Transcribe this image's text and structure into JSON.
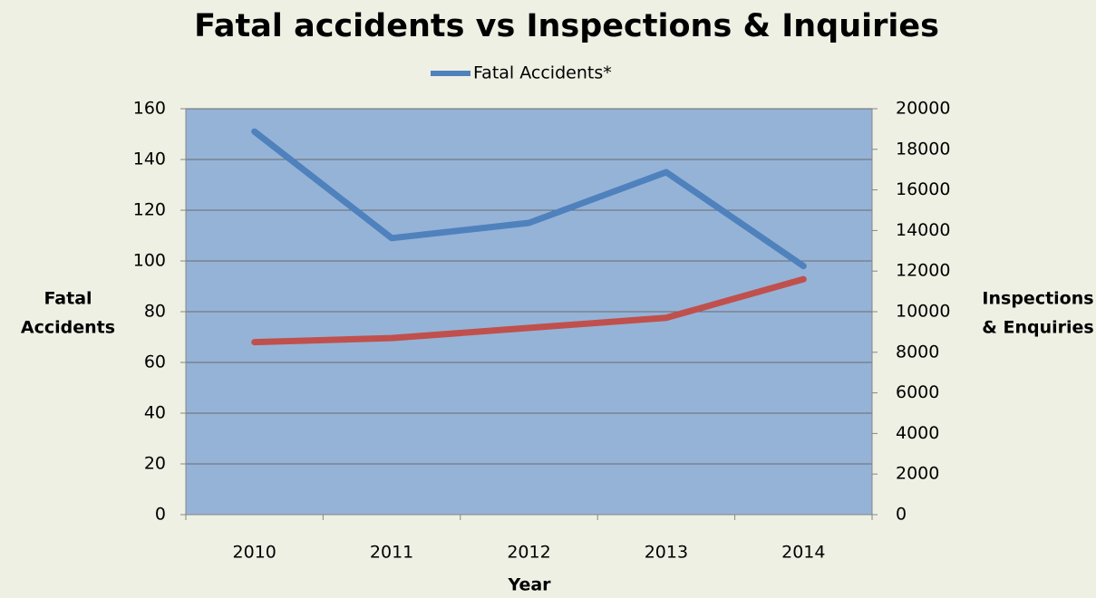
{
  "chart_data": {
    "type": "line",
    "title": "Fatal accidents vs Inspections & Inquiries",
    "xlabel": "Year",
    "ylabel": [
      "Fatal",
      "Accidents"
    ],
    "y2label": [
      "Inspections",
      "& Enquiries"
    ],
    "categories": [
      "2010",
      "2011",
      "2012",
      "2013",
      "2014"
    ],
    "series": [
      {
        "name": "Fatal Accidents*",
        "color": "#4f81bd",
        "values": [
          151,
          109,
          115,
          135,
          98
        ]
      },
      {
        "color": "#c0504d",
        "axis": "y2",
        "values": [
          8500,
          8700,
          9200,
          9700,
          11600
        ]
      }
    ],
    "ylim": [
      0,
      160
    ],
    "yticks": [
      0,
      20,
      40,
      60,
      80,
      100,
      120,
      140,
      160
    ],
    "y2lim": [
      0,
      20000
    ],
    "y2ticks": [
      0,
      2000,
      4000,
      6000,
      8000,
      10000,
      12000,
      14000,
      16000,
      18000,
      20000
    ],
    "grid": true,
    "legend": "top"
  }
}
